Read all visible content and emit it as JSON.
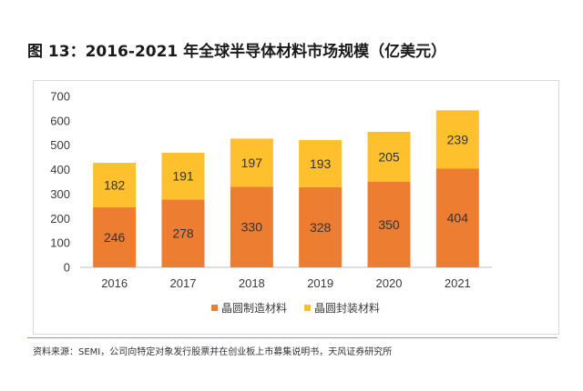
{
  "title": "图 13：2016-2021  年全球半导体材料市场规模（亿美元）",
  "source": "资料来源：SEMI，公司向特定对象发行股票并在创业板上市募集说明书，天风证券研究所",
  "colors": {
    "manufacturing": "#ED7D31",
    "packaging": "#FFC02E",
    "rule": "#E58A2E"
  },
  "chart_data": {
    "type": "bar",
    "stacked": true,
    "categories": [
      "2016",
      "2017",
      "2018",
      "2019",
      "2020",
      "2021"
    ],
    "series": [
      {
        "name": "晶圆制造材料",
        "values": [
          246,
          278,
          330,
          328,
          350,
          404
        ]
      },
      {
        "name": "晶圆封装材料",
        "values": [
          182,
          191,
          197,
          193,
          205,
          239
        ]
      }
    ],
    "ylim": [
      0,
      700
    ],
    "yticks": [
      0,
      100,
      200,
      300,
      400,
      500,
      600,
      700
    ],
    "grid": false,
    "legend_position": "bottom"
  }
}
